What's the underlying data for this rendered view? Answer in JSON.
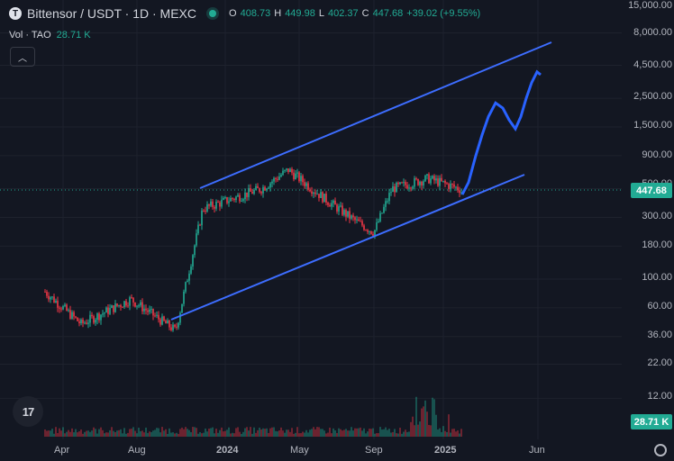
{
  "header": {
    "logo_letter": "T",
    "symbol": "Bittensor / USDT · 1D · MEXC",
    "ohlc": [
      {
        "k": "O",
        "v": "408.73"
      },
      {
        "k": "H",
        "v": "449.98"
      },
      {
        "k": "L",
        "v": "402.37"
      },
      {
        "k": "C",
        "v": "447.68"
      }
    ],
    "change": "+39.02 (+9.55%)",
    "status_color": "#22ab94"
  },
  "volume": {
    "label": "Vol · TAO",
    "value": "28.71 K"
  },
  "collapse_icon": "chevron-up-icon",
  "tv_logo_text": "17",
  "price_axis": {
    "labels": [
      "15,000.00",
      "8,000.00",
      "4,500.00",
      "2,500.00",
      "1,500.00",
      "900.00",
      "500.00",
      "300.00",
      "180.00",
      "100.00",
      "60.00",
      "36.00",
      "22.00",
      "12.00"
    ],
    "current_price": "447.68",
    "volume_badge": "28.71 K"
  },
  "time_axis": {
    "labels": [
      "Apr",
      "Aug",
      "2024",
      "May",
      "Sep",
      "2025",
      "Jun"
    ]
  },
  "colors": {
    "up": "#22ab94",
    "down": "#f23645",
    "projection": "#2962ff",
    "channel": "#3d6dff",
    "background": "#131722"
  },
  "chart_data": {
    "type": "candlestick",
    "scale": "log",
    "symbol": "TAO/USDT",
    "timeframe": "1D",
    "ylim": [
      8,
      15000
    ],
    "x": [
      "2023-04",
      "2023-06",
      "2023-08",
      "2023-10",
      "2023-12",
      "2024-02",
      "2024-03",
      "2024-05",
      "2024-07",
      "2024-09",
      "2024-10",
      "2024-12",
      "2025-01",
      "2025-02",
      "2025-04",
      "2025-06"
    ],
    "close": [
      80,
      45,
      70,
      40,
      350,
      500,
      700,
      420,
      280,
      230,
      500,
      600,
      500,
      447.68,
      2300,
      4000
    ],
    "projection_path": {
      "x": [
        "2025-02",
        "2025-03",
        "2025-04",
        "2025-05",
        "2025-06"
      ],
      "values": [
        450,
        1200,
        2300,
        1500,
        4000
      ]
    },
    "channel_upper": {
      "x": [
        "2023-12",
        "2025-06"
      ],
      "values": [
        480,
        6000
      ]
    },
    "channel_lower": {
      "x": [
        "2023-10",
        "2025-03"
      ],
      "values": [
        38,
        650
      ]
    },
    "last_price": 447.68,
    "volume_last": "28.71 K"
  }
}
